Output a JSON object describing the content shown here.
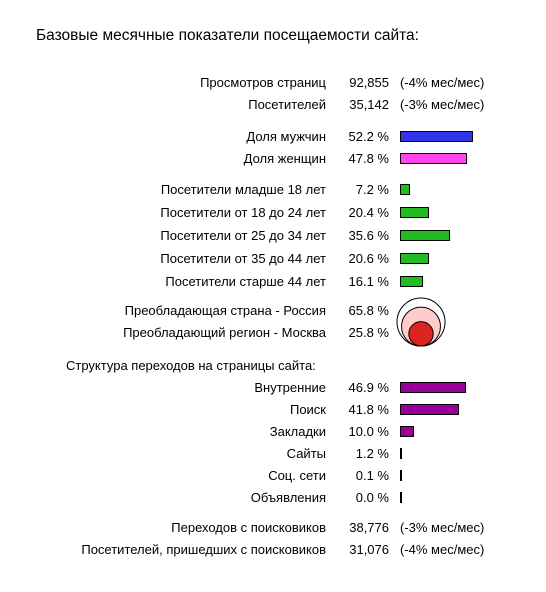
{
  "title": "Базовые месячные показатели посещаемости сайта:",
  "summary": [
    {
      "label": "Просмотров страниц",
      "value": "92,855",
      "change": "(-4% мес/мес)"
    },
    {
      "label": "Посетителей",
      "value": "35,142",
      "change": "(-3% мес/мес)"
    }
  ],
  "gender": [
    {
      "label": "Доля мужчин",
      "value": "52.2 %",
      "fraction": 0.522,
      "color": "#3333ee"
    },
    {
      "label": "Доля женщин",
      "value": "47.8 %",
      "fraction": 0.478,
      "color": "#ff44ee"
    }
  ],
  "age": [
    {
      "label": "Посетители младше 18 лет",
      "value": "7.2 %",
      "fraction": 0.072,
      "color": "#22bb22"
    },
    {
      "label": "Посетители от 18 до 24 лет",
      "value": "20.4 %",
      "fraction": 0.204,
      "color": "#22bb22"
    },
    {
      "label": "Посетители от 25 до 34 лет",
      "value": "35.6 %",
      "fraction": 0.356,
      "color": "#22bb22"
    },
    {
      "label": "Посетители от 35 до 44 лет",
      "value": "20.6 %",
      "fraction": 0.206,
      "color": "#22bb22"
    },
    {
      "label": "Посетители старше 44 лет",
      "value": "16.1 %",
      "fraction": 0.161,
      "color": "#22bb22"
    }
  ],
  "geo": [
    {
      "label": "Преобладающая страна - Россия",
      "value": "65.8 %",
      "fraction": 0.658,
      "color": "#ffcccc"
    },
    {
      "label": "Преобладающий регион - Москва",
      "value": "25.8 %",
      "fraction": 0.258,
      "color": "#dd2222"
    }
  ],
  "traffic_title": "Структура переходов на страницы сайта:",
  "traffic": [
    {
      "label": "Внутренние",
      "value": "46.9 %",
      "fraction": 0.469,
      "color": "#990099"
    },
    {
      "label": "Поиск",
      "value": "41.8 %",
      "fraction": 0.418,
      "color": "#990099"
    },
    {
      "label": "Закладки",
      "value": "10.0 %",
      "fraction": 0.1,
      "color": "#990099"
    },
    {
      "label": "Сайты",
      "value": "1.2 %",
      "fraction": 0.012,
      "color": "#990099"
    },
    {
      "label": "Соц. сети",
      "value": "0.1 %",
      "fraction": 0.001,
      "color": "#990099"
    },
    {
      "label": "Объявления",
      "value": "0.0 %",
      "fraction": 0.0,
      "color": "#990099"
    }
  ],
  "search": [
    {
      "label": "Переходов с поисковиков",
      "value": "38,776",
      "change": "(-3% мес/мес)"
    },
    {
      "label": "Посетителей, пришедших с поисковиков",
      "value": "31,076",
      "change": "(-4% мес/мес)"
    }
  ],
  "chart_data": {
    "type": "bar",
    "groups": [
      {
        "name": "gender",
        "categories": [
          "Доля мужчин",
          "Доля женщин"
        ],
        "values": [
          52.2,
          47.8
        ]
      },
      {
        "name": "age",
        "categories": [
          "Посетители младше 18 лет",
          "Посетители от 18 до 24 лет",
          "Посетители от 25 до 34 лет",
          "Посетители от 35 до 44 лет",
          "Посетители старше 44 лет"
        ],
        "values": [
          7.2,
          20.4,
          35.6,
          20.6,
          16.1
        ]
      },
      {
        "name": "geo",
        "categories": [
          "Преобладающая страна - Россия",
          "Преобладающий регион - Москва"
        ],
        "values": [
          65.8,
          25.8
        ]
      },
      {
        "name": "traffic",
        "categories": [
          "Внутренние",
          "Поиск",
          "Закладки",
          "Сайты",
          "Соц. сети",
          "Объявления"
        ],
        "values": [
          46.9,
          41.8,
          10.0,
          1.2,
          0.1,
          0.0
        ]
      }
    ],
    "unit": "%"
  }
}
